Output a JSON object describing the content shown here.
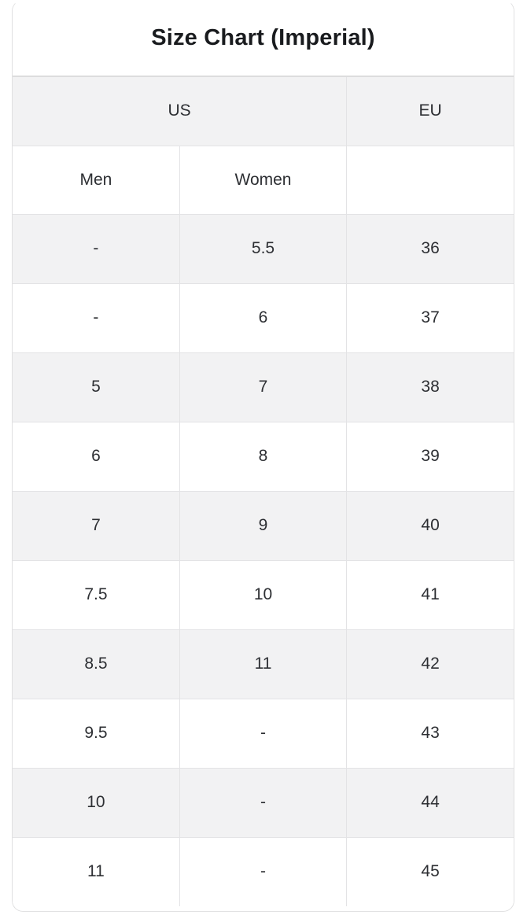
{
  "title": "Size Chart (Imperial)",
  "header": {
    "us": "US",
    "eu": "EU",
    "men": "Men",
    "women": "Women",
    "empty": ""
  },
  "chart_data": {
    "type": "table",
    "title": "Size Chart (Imperial)",
    "column_groups": [
      {
        "label": "US",
        "span": 2
      },
      {
        "label": "EU",
        "span": 1
      }
    ],
    "columns": [
      "Men",
      "Women",
      "EU"
    ],
    "rows": [
      [
        "-",
        "5.5",
        "36"
      ],
      [
        "-",
        "6",
        "37"
      ],
      [
        "5",
        "7",
        "38"
      ],
      [
        "6",
        "8",
        "39"
      ],
      [
        "7",
        "9",
        "40"
      ],
      [
        "7.5",
        "10",
        "41"
      ],
      [
        "8.5",
        "11",
        "42"
      ],
      [
        "9.5",
        "-",
        "43"
      ],
      [
        "10",
        "-",
        "44"
      ],
      [
        "11",
        "-",
        "45"
      ]
    ]
  },
  "colors": {
    "background": "#ffffff",
    "row_alt_background": "#f2f2f3",
    "border": "#e3e3e5",
    "title_divider": "#dcdcdd",
    "text": "#2d2f33",
    "title_text": "#191b1e"
  }
}
